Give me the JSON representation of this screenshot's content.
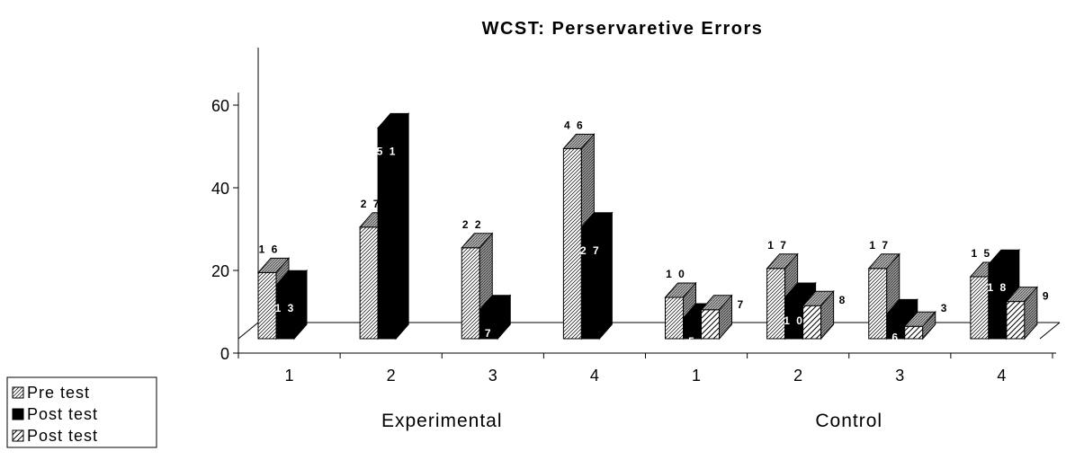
{
  "chart_data": {
    "type": "bar",
    "title": "WCST: Perservaretive Errors",
    "xlabel": "",
    "ylabel": "",
    "ylim": [
      0,
      60
    ],
    "yticks": [
      "0",
      "20",
      "40",
      "60"
    ],
    "groups": [
      {
        "label": "Experimental",
        "categories": [
          "1",
          "2",
          "3",
          "4"
        ]
      },
      {
        "label": "Control",
        "categories": [
          "1",
          "2",
          "3",
          "4"
        ]
      }
    ],
    "series": [
      {
        "name": "Pre test",
        "pattern": "fine-diagonal",
        "values": [
          16,
          27,
          22,
          46,
          10,
          17,
          17,
          15
        ],
        "labels": [
          "1 6",
          "2 7",
          "2 2",
          "4 6",
          "1 0",
          "1 7",
          "1 7",
          "1 5"
        ]
      },
      {
        "name": "Post test",
        "pattern": "solid-black",
        "values": [
          13,
          51,
          7,
          27,
          5,
          10,
          6,
          18
        ],
        "labels": [
          "1 3",
          "5 1",
          "7",
          "2 7",
          "5",
          "1 0",
          "6",
          "1 8"
        ]
      },
      {
        "name": "Post test",
        "pattern": "coarse-diagonal",
        "values": [
          null,
          null,
          null,
          null,
          7,
          8,
          3,
          9
        ],
        "labels": [
          "",
          "",
          "",
          "",
          "7",
          "8",
          "3",
          "9"
        ]
      }
    ],
    "legend_position": "bottom-left",
    "grid": false
  }
}
